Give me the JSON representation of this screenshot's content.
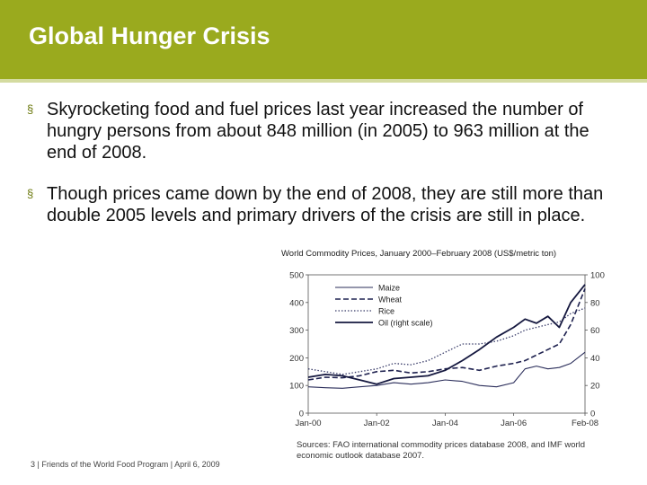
{
  "slide": {
    "title": "Global Hunger Crisis",
    "bullets": [
      "Skyrocketing food and fuel prices last year increased the number of hungry persons from about 848 million (in 2005) to 963 million at the end of 2008.",
      "Though prices came down by the end of 2008, they are still more than double 2005 levels and primary drivers of the crisis are still in place."
    ],
    "bullet_glyph": "§",
    "footer": "3 | Friends of the World Food Program | April 6, 2009",
    "source": "Sources: FAO international commodity prices database 2008, and IMF world economic outlook database 2007.",
    "colors": {
      "header": "#9aaa1e",
      "bullet": "#6d7a10"
    }
  },
  "chart_data": {
    "type": "line",
    "title": "World Commodity Prices, January 2000–February 2008 (US$/metric ton)",
    "x_ticks": [
      "Jan-00",
      "Jan-02",
      "Jan-04",
      "Jan-06",
      "Feb-08"
    ],
    "x_tick_positions": [
      0,
      24,
      48,
      72,
      97
    ],
    "xlim": [
      0,
      97
    ],
    "ylim_left": [
      0,
      500
    ],
    "ylim_right": [
      0,
      100
    ],
    "y_ticks_left": [
      "0",
      "100",
      "200",
      "300",
      "400",
      "500"
    ],
    "y_ticks_right": [
      "0",
      "20",
      "40",
      "60",
      "80",
      "100"
    ],
    "legend_position": "top-left",
    "series": [
      {
        "name": "Maize",
        "axis": "left",
        "style": "solid-thin",
        "points": [
          [
            0,
            95
          ],
          [
            6,
            92
          ],
          [
            12,
            90
          ],
          [
            18,
            95
          ],
          [
            24,
            100
          ],
          [
            30,
            110
          ],
          [
            36,
            105
          ],
          [
            42,
            110
          ],
          [
            48,
            120
          ],
          [
            54,
            115
          ],
          [
            60,
            100
          ],
          [
            66,
            95
          ],
          [
            72,
            110
          ],
          [
            76,
            160
          ],
          [
            80,
            170
          ],
          [
            84,
            160
          ],
          [
            88,
            165
          ],
          [
            92,
            180
          ],
          [
            97,
            220
          ]
        ]
      },
      {
        "name": "Wheat",
        "axis": "left",
        "style": "dashed",
        "points": [
          [
            0,
            120
          ],
          [
            6,
            130
          ],
          [
            12,
            128
          ],
          [
            18,
            135
          ],
          [
            24,
            150
          ],
          [
            30,
            155
          ],
          [
            36,
            145
          ],
          [
            42,
            150
          ],
          [
            48,
            160
          ],
          [
            54,
            165
          ],
          [
            60,
            155
          ],
          [
            66,
            170
          ],
          [
            72,
            180
          ],
          [
            76,
            190
          ],
          [
            80,
            210
          ],
          [
            84,
            230
          ],
          [
            88,
            250
          ],
          [
            92,
            320
          ],
          [
            97,
            450
          ]
        ]
      },
      {
        "name": "Rice",
        "axis": "left",
        "style": "dotted",
        "points": [
          [
            0,
            160
          ],
          [
            6,
            150
          ],
          [
            12,
            140
          ],
          [
            18,
            150
          ],
          [
            24,
            160
          ],
          [
            30,
            180
          ],
          [
            36,
            175
          ],
          [
            42,
            190
          ],
          [
            48,
            220
          ],
          [
            54,
            250
          ],
          [
            60,
            250
          ],
          [
            66,
            260
          ],
          [
            72,
            280
          ],
          [
            76,
            300
          ],
          [
            80,
            310
          ],
          [
            84,
            320
          ],
          [
            88,
            330
          ],
          [
            92,
            360
          ],
          [
            97,
            380
          ]
        ]
      },
      {
        "name": "Oil (right scale)",
        "axis": "right",
        "style": "solid-thick",
        "points": [
          [
            0,
            26
          ],
          [
            6,
            28
          ],
          [
            12,
            27
          ],
          [
            18,
            24
          ],
          [
            24,
            21
          ],
          [
            30,
            25
          ],
          [
            36,
            26
          ],
          [
            42,
            27
          ],
          [
            48,
            31
          ],
          [
            54,
            38
          ],
          [
            60,
            46
          ],
          [
            66,
            55
          ],
          [
            72,
            62
          ],
          [
            76,
            68
          ],
          [
            80,
            65
          ],
          [
            84,
            70
          ],
          [
            88,
            62
          ],
          [
            92,
            80
          ],
          [
            97,
            93
          ]
        ]
      }
    ]
  }
}
